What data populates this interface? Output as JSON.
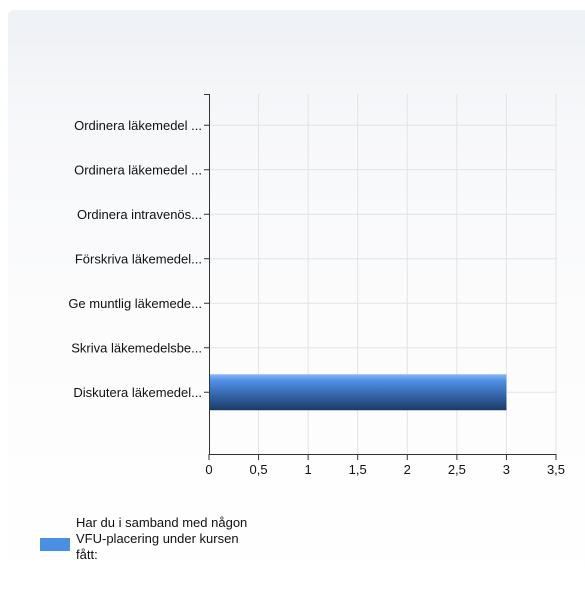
{
  "chart_data": {
    "type": "bar",
    "orientation": "horizontal",
    "categories": [
      "Ordinera läkemedel ...",
      "Ordinera läkemedel ...",
      "Ordinera intravenös...",
      "Förskriva läkemedel...",
      "Ge muntlig läkemede...",
      "Skriva läkemedelsbe...",
      "Diskutera läkemedel..."
    ],
    "series": [
      {
        "name": "Har du i samband med någon VFU-placering under kursen fått:",
        "values": [
          0,
          0,
          0,
          0,
          0,
          0,
          3
        ]
      }
    ],
    "xlim": [
      0,
      3.5
    ],
    "xticks": [
      0,
      0.5,
      1,
      1.5,
      2,
      2.5,
      3,
      3.5
    ],
    "xtick_labels": [
      "0",
      "0,5",
      "1",
      "1,5",
      "2",
      "2,5",
      "3",
      "3,5"
    ],
    "grid": true,
    "legend_placement": "bottom-left",
    "legend_lines": [
      "Har du i samband med någon",
      "VFU-placering under kursen",
      "fått:"
    ],
    "colors": {
      "bar_top": "#5b9bef",
      "bar_bottom": "#1c3d6e",
      "legend_swatch": "#4a90e2",
      "grid": "#e3e3e3",
      "axis": "#333333"
    }
  }
}
